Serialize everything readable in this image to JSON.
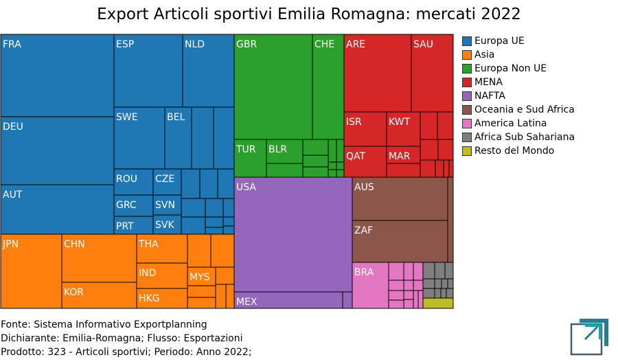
{
  "chart_data": {
    "type": "treemap",
    "title": "Export Articoli sportivi Emilia Romagna: mercati 2022",
    "legend": [
      {
        "name": "Europa UE",
        "color": "#1f77b4"
      },
      {
        "name": "Asia",
        "color": "#ff7f0e"
      },
      {
        "name": "Europa Non UE",
        "color": "#2ca02c"
      },
      {
        "name": "MENA",
        "color": "#d62728"
      },
      {
        "name": "NAFTA",
        "color": "#9467bd"
      },
      {
        "name": "Oceania e Sud Africa",
        "color": "#8c564b"
      },
      {
        "name": "America Latina",
        "color": "#e377c2"
      },
      {
        "name": "Africa Sub Sahariana",
        "color": "#7f7f7f"
      },
      {
        "name": "Resto del Mondo",
        "color": "#bcbd22"
      }
    ],
    "legend_position": "right",
    "tiles": [
      {
        "label": "FRA",
        "group": "Europa UE",
        "value": 11.9
      },
      {
        "label": "DEU",
        "group": "Europa UE",
        "value": 9.8
      },
      {
        "label": "AUT",
        "group": "Europa UE",
        "value": 7.2
      },
      {
        "label": "ESP",
        "group": "Europa UE",
        "value": 5.4
      },
      {
        "label": "NLD",
        "group": "Europa UE",
        "value": 3.9
      },
      {
        "label": "SWE",
        "group": "Europa UE",
        "value": 3.6
      },
      {
        "label": "BEL",
        "group": "Europa UE",
        "value": 1.8
      },
      {
        "label": "ROU",
        "group": "Europa UE",
        "value": 1.4
      },
      {
        "label": "CZE",
        "group": "Europa UE",
        "value": 1.1
      },
      {
        "label": "GRC",
        "group": "Europa UE",
        "value": 1.3
      },
      {
        "label": "SVN",
        "group": "Europa UE",
        "value": 1.0
      },
      {
        "label": "PRT",
        "group": "Europa UE",
        "value": 1.2
      },
      {
        "label": "SVK",
        "group": "Europa UE",
        "value": 0.9
      },
      {
        "label": "JPN",
        "group": "Asia",
        "value": 4.7
      },
      {
        "label": "CHN",
        "group": "Asia",
        "value": 4.1
      },
      {
        "label": "KOR",
        "group": "Asia",
        "value": 2.3
      },
      {
        "label": "THA",
        "group": "Asia",
        "value": 2.0
      },
      {
        "label": "IND",
        "group": "Asia",
        "value": 1.6
      },
      {
        "label": "HKG",
        "group": "Asia",
        "value": 1.4
      },
      {
        "label": "MYS",
        "group": "Asia",
        "value": 0.9
      },
      {
        "label": "GBR",
        "group": "Europa Non UE",
        "value": 5.8
      },
      {
        "label": "CHE",
        "group": "Europa Non UE",
        "value": 2.6
      },
      {
        "label": "TUR",
        "group": "Europa Non UE",
        "value": 1.3
      },
      {
        "label": "BLR",
        "group": "Europa Non UE",
        "value": 1.0
      },
      {
        "label": "ARE",
        "group": "MENA",
        "value": 3.2
      },
      {
        "label": "SAU",
        "group": "MENA",
        "value": 2.5
      },
      {
        "label": "ISR",
        "group": "MENA",
        "value": 1.1
      },
      {
        "label": "KWT",
        "group": "MENA",
        "value": 0.9
      },
      {
        "label": "QAT",
        "group": "MENA",
        "value": 1.0
      },
      {
        "label": "MAR",
        "group": "MENA",
        "value": 0.6
      },
      {
        "label": "USA",
        "group": "NAFTA",
        "value": 8.6
      },
      {
        "label": "MEX",
        "group": "NAFTA",
        "value": 1.3
      },
      {
        "label": "AUS",
        "group": "Oceania e Sud Africa",
        "value": 2.7
      },
      {
        "label": "ZAF",
        "group": "Oceania e Sud Africa",
        "value": 2.6
      },
      {
        "label": "BRA",
        "group": "America Latina",
        "value": 1.3
      }
    ]
  },
  "footer": {
    "source": "Fonte: Sistema Informativo Exportplanning",
    "declarant": "Dichiarante: Emilia-Romagna; Flusso: Esportazioni",
    "product": "Prodotto: 323 - Articoli sportivi; Periodo: Anno 2022;"
  },
  "logo": {
    "icon": "exportplanning-logo-icon",
    "colors": [
      "#2a7d8c",
      "#1aa3b5",
      "#4a5a6a"
    ]
  }
}
